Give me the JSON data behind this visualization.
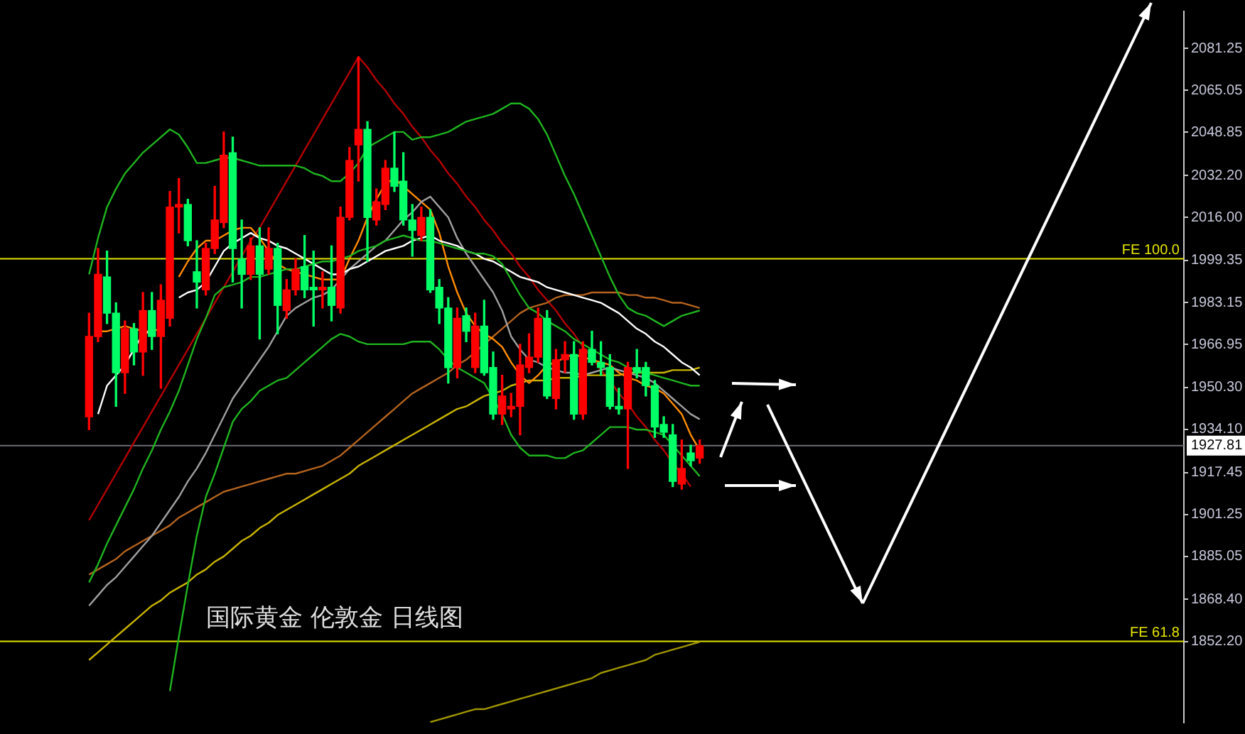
{
  "chart_data": {
    "type": "candlestick",
    "categories": [
      null,
      null,
      null,
      null,
      null,
      null,
      null,
      null,
      null,
      null,
      null,
      null,
      null,
      null,
      null,
      null,
      null,
      null,
      null,
      null,
      null,
      null,
      null,
      null,
      null,
      null,
      null,
      null,
      null,
      null,
      null,
      null,
      null,
      null,
      null,
      null,
      null,
      null,
      null,
      null,
      null,
      null,
      null,
      null,
      null,
      null,
      null,
      null,
      null,
      null,
      null,
      null,
      null,
      null,
      null,
      null,
      null,
      null,
      null,
      null,
      null,
      null,
      null,
      null,
      null,
      null,
      null,
      null,
      null,
      null,
      null,
      null,
      null,
      null,
      null,
      null,
      null,
      null,
      null,
      null,
      null,
      null,
      null,
      null,
      null,
      null,
      null,
      null,
      null,
      null,
      null,
      null,
      null,
      null,
      null,
      null,
      null,
      null,
      null,
      null,
      null,
      null,
      null,
      null,
      null,
      null,
      null,
      null,
      null,
      null,
      null,
      null,
      null
    ],
    "ohlc": [
      [
        1939,
        1979,
        1934,
        1970
      ],
      [
        1970,
        2004,
        1968,
        1994
      ],
      [
        1993,
        2003,
        1975,
        1979
      ],
      [
        1979,
        1983,
        1943,
        1956
      ],
      [
        1956,
        1976,
        1948,
        1973
      ],
      [
        1973,
        1975,
        1959,
        1964
      ],
      [
        1964,
        1987,
        1955,
        1980
      ],
      [
        1980,
        1987,
        1965,
        1970
      ],
      [
        1970,
        1990,
        1950,
        1984
      ],
      [
        1977,
        2026,
        1974,
        2020
      ],
      [
        2020,
        2031,
        2010,
        2021
      ],
      [
        2021,
        2023,
        2005,
        2007
      ],
      [
        1995,
        2007,
        1981,
        1991
      ],
      [
        1988,
        2006,
        1986,
        2004
      ],
      [
        2004,
        2028,
        2002,
        2015
      ],
      [
        2014,
        2049,
        2012,
        2040
      ],
      [
        2041,
        2047,
        1991,
        2004
      ],
      [
        2000,
        2015,
        1981,
        1994
      ],
      [
        1994,
        2008,
        1992,
        2005
      ],
      [
        2005,
        2012,
        1969,
        1994
      ],
      [
        1996,
        2012,
        1994,
        2004
      ],
      [
        2004,
        2006,
        1971,
        1982
      ],
      [
        1980,
        1992,
        1977,
        1988
      ],
      [
        1988,
        2000,
        1986,
        1996
      ],
      [
        1997,
        2009,
        1985,
        1988
      ],
      [
        1989,
        2003,
        1974,
        1988
      ],
      [
        1988,
        1995,
        1981,
        1989
      ],
      [
        1989,
        2005,
        1976,
        1982
      ],
      [
        1981,
        2020,
        1979,
        2016
      ],
      [
        2016,
        2043,
        2015,
        2038
      ],
      [
        2044,
        2078,
        2030,
        2050
      ],
      [
        2050,
        2053,
        1999,
        2016
      ],
      [
        2015,
        2027,
        2013,
        2022
      ],
      [
        2021,
        2038,
        2019,
        2035
      ],
      [
        2035,
        2049,
        2026,
        2028
      ],
      [
        2030,
        2041,
        2013,
        2015
      ],
      [
        2015,
        2021,
        2001,
        2011
      ],
      [
        2009,
        2020,
        2007,
        2016
      ],
      [
        2016,
        2019,
        1987,
        1988
      ],
      [
        1989,
        1992,
        1975,
        1981
      ],
      [
        1981,
        1985,
        1952,
        1958
      ],
      [
        1958,
        1981,
        1954,
        1977
      ],
      [
        1978,
        1981,
        1968,
        1972
      ],
      [
        1958,
        1979,
        1956,
        1974
      ],
      [
        1974,
        1984,
        1955,
        1956
      ],
      [
        1958,
        1964,
        1938,
        1940
      ],
      [
        1940,
        1955,
        1936,
        1947
      ],
      [
        1942,
        1948,
        1939,
        1943
      ],
      [
        1943,
        1967,
        1932,
        1959
      ],
      [
        1958,
        1971,
        1956,
        1962
      ],
      [
        1962,
        1981,
        1960,
        1977
      ],
      [
        1977,
        1980,
        1946,
        1947
      ],
      [
        1946,
        1965,
        1942,
        1961
      ],
      [
        1961,
        1968,
        1956,
        1963
      ],
      [
        1963,
        1968,
        1938,
        1940
      ],
      [
        1940,
        1968,
        1938,
        1965
      ],
      [
        1965,
        1972,
        1959,
        1960
      ],
      [
        1960,
        1968,
        1955,
        1958
      ],
      [
        1958,
        1963,
        1942,
        1943
      ],
      [
        1943,
        1950,
        1940,
        1942
      ],
      [
        1942,
        1960,
        1919,
        1958
      ],
      [
        1958,
        1965,
        1954,
        1956
      ],
      [
        1958,
        1960,
        1947,
        1951
      ],
      [
        1951,
        1953,
        1931,
        1935
      ],
      [
        1936,
        1939,
        1931,
        1933
      ],
      [
        1932,
        1936,
        1912,
        1914
      ],
      [
        1913,
        1930,
        1911,
        1919
      ],
      [
        1925,
        1928,
        1920,
        1922
      ],
      [
        1923,
        1930,
        1921,
        1927.81
      ],
      null,
      null,
      null,
      null,
      null,
      null,
      null,
      null,
      null,
      null,
      null,
      null,
      null,
      null,
      null,
      null,
      null,
      null,
      null,
      null,
      null,
      null,
      null,
      null,
      null,
      null,
      null,
      null,
      null,
      null,
      null,
      null,
      null,
      null,
      null,
      null,
      null,
      null,
      null,
      null,
      null,
      null,
      null,
      null
    ],
    "colors": [
      "#ff0000",
      "#ff0000",
      "#00ff66",
      "#00ff66",
      "#ff0000",
      "#00ff66",
      "#ff0000",
      "#00ff66",
      "#ff0000",
      "#ff0000",
      "#ff0000",
      "#00ff66",
      "#00ff66",
      "#ff0000",
      "#ff0000",
      "#ff0000",
      "#00ff66",
      "#00ff66",
      "#ff0000",
      "#00ff66",
      "#ff0000",
      "#00ff66",
      "#ff0000",
      "#ff0000",
      "#00ff66",
      "#00ff66",
      "#ff0000",
      "#00ff66",
      "#ff0000",
      "#ff0000",
      "#ff0000",
      "#00ff66",
      "#ff0000",
      "#ff0000",
      "#00ff66",
      "#00ff66",
      "#00ff66",
      "#ff0000",
      "#00ff66",
      "#00ff66",
      "#00ff66",
      "#ff0000",
      "#00ff66",
      "#ff0000",
      "#00ff66",
      "#00ff66",
      "#ff0000",
      "#ff0000",
      "#ff0000",
      "#ff0000",
      "#ff0000",
      "#00ff66",
      "#ff0000",
      "#ff0000",
      "#00ff66",
      "#ff0000",
      "#00ff66",
      "#00ff66",
      "#00ff66",
      "#00ff66",
      "#ff0000",
      "#00ff66",
      "#00ff66",
      "#00ff66",
      "#00ff66",
      "#00ff66",
      "#ff0000",
      "#00ff66",
      "#ff0000",
      null,
      null,
      null,
      null,
      null,
      null,
      null,
      null,
      null,
      null,
      null,
      null,
      null,
      null,
      null,
      null,
      null,
      null,
      null,
      null,
      null,
      null,
      null,
      null,
      null,
      null,
      null,
      null,
      null,
      null,
      null,
      null,
      null,
      null,
      null,
      null,
      null,
      null,
      null,
      null,
      null,
      null,
      null,
      null
    ],
    "series": [
      {
        "type": "line",
        "color": "#1fb41f",
        "values": [
          1994,
          2008,
          2020,
          2027,
          2033,
          2037,
          2041,
          2044,
          2047,
          2050,
          2048,
          2043,
          2037,
          2037,
          2038,
          2039,
          2039,
          2038,
          2037,
          2036,
          2036,
          2036,
          2036,
          2036,
          2035,
          2033,
          2032,
          2030,
          2030,
          2033,
          2037,
          2043,
          2045,
          2047,
          2049,
          2049,
          2046,
          2047,
          2047,
          2048,
          2049,
          2051,
          2053,
          2054,
          2055,
          2056,
          2058,
          2060,
          2060,
          2058,
          2054,
          2048,
          2040,
          2032,
          2025,
          2017,
          2009,
          2001,
          1993,
          1986,
          1981,
          1979,
          1978,
          1976,
          1974,
          1976,
          1978,
          1979,
          1980,
          null,
          null,
          null,
          null,
          null,
          null,
          null,
          null,
          null,
          null,
          null,
          null,
          null,
          null,
          null,
          null,
          null,
          null,
          null,
          null,
          null,
          null,
          null,
          null,
          null,
          null,
          null,
          null,
          null,
          null,
          null,
          null,
          null,
          null,
          null,
          null,
          null,
          null,
          null,
          null,
          null,
          null,
          null,
          null
        ]
      },
      {
        "type": "line",
        "color": "#1fb41f",
        "values": [
          1875,
          1882,
          1890,
          1897,
          1904,
          1911,
          1919,
          1926,
          1934,
          1941,
          1949,
          1959,
          1969,
          1977,
          1986,
          1989,
          1990,
          1991,
          1993,
          1993,
          1994,
          1995,
          1996,
          1996,
          1997,
          1998,
          1999,
          1999,
          2000,
          2001,
          2003,
          2004,
          2005,
          2007,
          2008,
          2009,
          2008,
          2007,
          2007,
          2006,
          2005,
          2004,
          2003,
          2002,
          2002,
          2001,
          1998,
          1992,
          1986,
          1981,
          1979,
          1976,
          1974,
          1972,
          1969,
          1967,
          1965,
          1963,
          1961,
          1960,
          1958,
          1957,
          1956,
          1955,
          1954,
          1953,
          1952,
          1951,
          1951,
          null,
          null,
          null,
          null,
          null,
          null,
          null,
          null,
          null,
          null,
          null,
          null,
          null,
          null,
          null,
          null,
          null,
          null,
          null,
          null,
          null,
          null,
          null,
          null,
          null,
          null,
          null,
          null,
          null,
          null,
          null,
          null,
          null,
          null,
          null,
          null,
          null,
          null,
          null,
          null,
          null,
          null,
          null,
          null
        ]
      },
      {
        "type": "line",
        "color": "#1fb41f",
        "values": [
          null,
          null,
          null,
          null,
          null,
          null,
          null,
          null,
          null,
          1833,
          1854,
          1874,
          1893,
          1908,
          1917,
          1927,
          1937,
          1942,
          1945,
          1949,
          1951,
          1953,
          1954,
          1957,
          1960,
          1963,
          1966,
          1969,
          1971,
          1970,
          1968,
          1967,
          1967,
          1967,
          1967,
          1967,
          1968,
          1968,
          1968,
          1965,
          1961,
          1958,
          1956,
          1954,
          1952,
          1946,
          1940,
          1932,
          1927,
          1924,
          1924,
          1924,
          1923,
          1923,
          1925,
          1926,
          1929,
          1932,
          1935,
          1935,
          1935,
          1934,
          1934,
          1933,
          1932,
          1928,
          1924,
          1920,
          1916,
          null,
          null,
          null,
          null,
          null,
          null,
          null,
          null,
          null,
          null,
          null,
          null,
          null,
          null,
          null,
          null,
          null,
          null,
          null,
          null,
          null,
          null,
          null,
          null,
          null,
          null,
          null,
          null,
          null,
          null,
          null,
          null,
          null,
          null,
          null,
          null,
          null,
          null,
          null,
          null,
          null,
          null,
          null,
          null
        ]
      },
      {
        "type": "line",
        "color": "#ffffff",
        "values": [
          null,
          1940,
          1951,
          1955,
          1959,
          1965,
          1971,
          1972,
          null,
          null,
          1985,
          1987,
          1988,
          1991,
          1997,
          2003,
          2006,
          2008,
          2010,
          2008,
          2007,
          2005,
          2004,
          2002,
          2000,
          1998,
          1996,
          1994,
          1994,
          1996,
          1997,
          1999,
          2001,
          2003,
          2004,
          2005,
          2007,
          2008,
          2009,
          2007,
          2006,
          2005,
          2003,
          2002,
          2000,
          1999,
          1997,
          1995,
          1993,
          1992,
          1991,
          1989,
          1988,
          1987,
          1986,
          1985,
          1984,
          1983,
          1981,
          1979,
          1976,
          1973,
          1971,
          1968,
          1966,
          1963,
          1960,
          1958,
          1955,
          null,
          null,
          null,
          null,
          null,
          null,
          null,
          null,
          null,
          null,
          null,
          null,
          null,
          null,
          null,
          null,
          null,
          null,
          null,
          null,
          null,
          null,
          null,
          null,
          null,
          null,
          null,
          null,
          null,
          null,
          null,
          null,
          null,
          null,
          null,
          null,
          null,
          null,
          null,
          null,
          null,
          null,
          null,
          null
        ]
      },
      {
        "type": "line",
        "color": "#a0a0a0",
        "values": [
          1866,
          1870,
          1874,
          1877,
          1881,
          1885,
          1889,
          1893,
          1898,
          1903,
          1908,
          1914,
          1919,
          1925,
          1932,
          1939,
          1946,
          1951,
          1956,
          1961,
          1966,
          1972,
          1978,
          1981,
          1983,
          1985,
          1986,
          1988,
          1992,
          1996,
          1999,
          2002,
          2005,
          2007,
          2011,
          2015,
          2018,
          2022,
          2024,
          2020,
          2016,
          2008,
          2002,
          1997,
          1992,
          1987,
          1980,
          1970,
          1965,
          1961,
          1960,
          1958,
          1957,
          1956,
          1956,
          1955,
          1956,
          1957,
          1958,
          1957,
          1956,
          1955,
          1954,
          1952,
          1949,
          1946,
          1943,
          1940,
          1938,
          null,
          null,
          null,
          null,
          null,
          null,
          null,
          null,
          null,
          null,
          null,
          null,
          null,
          null,
          null,
          null,
          null,
          null,
          null,
          null,
          null,
          null,
          null,
          null,
          null,
          null,
          null,
          null,
          null,
          null,
          null,
          null,
          null,
          null,
          null,
          null,
          null,
          null,
          null,
          null,
          null,
          null,
          null,
          null
        ]
      },
      {
        "type": "line",
        "color": "#ff8c00",
        "values": [
          null,
          1972,
          1972,
          1973,
          1974,
          1973,
          1972,
          1972,
          1973,
          null,
          1993,
          1999,
          2004,
          2007,
          2007,
          2009,
          2011,
          2012,
          2012,
          2008,
          2003,
          1998,
          1996,
          1995,
          1994,
          1993,
          1992,
          1992,
          1992,
          2000,
          2007,
          2016,
          2023,
          2029,
          2031,
          2028,
          2025,
          2022,
          2019,
          2010,
          1997,
          1987,
          1979,
          1974,
          1971,
          1969,
          1966,
          1960,
          1955,
          1952,
          1955,
          1959,
          1960,
          1962,
          1963,
          1962,
          1961,
          1960,
          1959,
          1956,
          1954,
          1953,
          1951,
          1950,
          1948,
          1944,
          1940,
          1932,
          1926,
          null,
          null,
          null,
          null,
          null,
          null,
          null,
          null,
          null,
          null,
          null,
          null,
          null,
          null,
          null,
          null,
          null,
          null,
          null,
          null,
          null,
          null,
          null,
          null,
          null,
          null,
          null,
          null,
          null,
          null,
          null,
          null,
          null,
          null,
          null,
          null,
          null,
          null,
          null,
          null,
          null,
          null,
          null,
          null
        ]
      },
      {
        "type": "line",
        "color": "#b4641e",
        "values": [
          1878,
          1880,
          1882,
          1884,
          1887,
          1889,
          1891,
          1893,
          1895,
          1897,
          1900,
          1902,
          1904,
          1906,
          1908,
          1910,
          1911,
          1912,
          1913,
          1914,
          1915,
          1916,
          1917,
          1917,
          1918,
          1919,
          1920,
          1922,
          1924,
          1927,
          1930,
          1933,
          1936,
          1939,
          1942,
          1945,
          1948,
          1950,
          1952,
          1954,
          1956,
          1959,
          1961,
          1964,
          1967,
          1970,
          1973,
          1976,
          1979,
          1981,
          1982,
          1983,
          1985,
          1986,
          1986,
          1986,
          1987,
          1987,
          1987,
          1987,
          1986,
          1986,
          1985,
          1985,
          1984,
          1983,
          1983,
          1982,
          1981,
          null,
          null,
          null,
          null,
          null,
          null,
          null,
          null,
          null,
          null,
          null,
          null,
          null,
          null,
          null,
          null,
          null,
          null,
          null,
          null,
          null,
          null,
          null,
          null,
          null,
          null,
          null,
          null,
          null,
          null,
          null,
          null,
          null,
          null,
          null,
          null,
          null,
          null,
          null,
          null,
          null,
          null,
          null,
          null
        ]
      },
      {
        "type": "line",
        "color": "#c8b400",
        "values": [
          1845,
          1848,
          1851,
          1854,
          1857,
          1860,
          1863,
          1866,
          1868,
          1871,
          1873,
          1875,
          1878,
          1880,
          1883,
          1885,
          1888,
          1891,
          1893,
          1896,
          1898,
          1901,
          1903,
          1905,
          1907,
          1909,
          1911,
          1913,
          1915,
          1917,
          1920,
          1922,
          1924,
          1926,
          1928,
          1930,
          1932,
          1934,
          1936,
          1938,
          1940,
          1942,
          1943,
          1945,
          1947,
          1948,
          1949,
          1951,
          1952,
          1953,
          1953,
          1953,
          1954,
          1954,
          1954,
          1955,
          1955,
          1955,
          1955,
          1955,
          1956,
          1956,
          1956,
          1956,
          1956,
          1957,
          1957,
          1957,
          1958,
          null,
          null,
          null,
          null,
          null,
          null,
          null,
          null,
          null,
          null,
          null,
          null,
          null,
          null,
          null,
          null,
          null,
          null,
          null,
          null,
          null,
          null,
          null,
          null,
          null,
          null,
          null,
          null,
          null,
          null,
          null,
          null,
          null,
          null,
          null,
          null,
          null,
          null,
          null,
          null,
          null,
          null,
          null,
          null
        ]
      },
      {
        "type": "line",
        "color": "#a09600",
        "values": [
          null,
          null,
          null,
          null,
          null,
          null,
          null,
          null,
          null,
          null,
          null,
          null,
          null,
          null,
          null,
          null,
          null,
          null,
          null,
          null,
          null,
          null,
          null,
          null,
          null,
          null,
          null,
          null,
          null,
          null,
          null,
          null,
          null,
          null,
          null,
          null,
          null,
          null,
          1821,
          1822,
          1823,
          1824,
          1825,
          1826,
          1826,
          1827,
          1828,
          1829,
          1830,
          1831,
          1832,
          1833,
          1834,
          1835,
          1836,
          1837,
          1838,
          1840,
          1841,
          1842,
          1843,
          1844,
          1845,
          1847,
          1848,
          1849,
          1850,
          1851,
          1852,
          null,
          null,
          null,
          null,
          null,
          null,
          null,
          null,
          null,
          null,
          null,
          null,
          null,
          null,
          null,
          null,
          null,
          null,
          null,
          null,
          null,
          null,
          null,
          null,
          null,
          null,
          null,
          null,
          null,
          null,
          null,
          null,
          null,
          null,
          null,
          null,
          null,
          null,
          null,
          null,
          null,
          null,
          null,
          null
        ]
      },
      {
        "type": "line",
        "color": "#b40000",
        "values": [
          1899,
          1905,
          1911,
          1917,
          1923,
          1929,
          1935,
          1941,
          1947,
          1953,
          1959,
          1965,
          1971,
          1977,
          1983,
          1989,
          1995,
          2001,
          2007,
          2012,
          2018,
          2024,
          2030,
          2036,
          2042,
          2048,
          2054,
          2060,
          2066,
          2072,
          2078,
          2074,
          2069,
          2065,
          2060,
          2056,
          2051,
          2047,
          2042,
          2038,
          2033,
          2029,
          2024,
          2020,
          2015,
          2011,
          2006,
          2002,
          1997,
          1993,
          1988,
          1984,
          1980,
          1975,
          1971,
          1966,
          1962,
          1957,
          1953,
          1948,
          1944,
          1939,
          1935,
          1930,
          1926,
          1921,
          1917,
          1912,
          null,
          null,
          null,
          null,
          null,
          null,
          null,
          null,
          null,
          null,
          null,
          null,
          null,
          null,
          null,
          null,
          null,
          null,
          null,
          null,
          null,
          null,
          null,
          null,
          null,
          null,
          null,
          null,
          null,
          null,
          null,
          null,
          null,
          null,
          null,
          null,
          null,
          null,
          null,
          null,
          null,
          null,
          null,
          null,
          null
        ]
      }
    ],
    "ylim": [
      1820.8,
      2095.6
    ],
    "yticks": [
      2081.25,
      2065.05,
      2048.85,
      {
        "value": 2032.2,
        "label": "2032.20"
      },
      {
        "value": 2016,
        "label": "2016.00"
      },
      1999.35,
      1983.15,
      1966.95,
      {
        "value": 1950.3,
        "label": "1950.30"
      },
      {
        "value": 1934.1,
        "label": "1934.10"
      },
      1917.45,
      1901.25,
      1885.05,
      {
        "value": 1868.4,
        "label": "1868.40"
      },
      {
        "value": 1852.2,
        "label": "1852.20"
      }
    ],
    "ref_lines": [
      {
        "axis": "y",
        "value": 2000,
        "label": "FE 100.0",
        "color": "#e6e600"
      },
      {
        "axis": "y",
        "value": 1852.2,
        "label": "FE 61.8",
        "color": "#e6e600"
      },
      {
        "axis": "y",
        "value": 1927.81,
        "label": "1927.81",
        "color": "#6e6e78"
      }
    ],
    "annotations": [
      "国际黄金 伦敦金 日线图"
    ],
    "tick_labels": "y",
    "legend": false
  }
}
